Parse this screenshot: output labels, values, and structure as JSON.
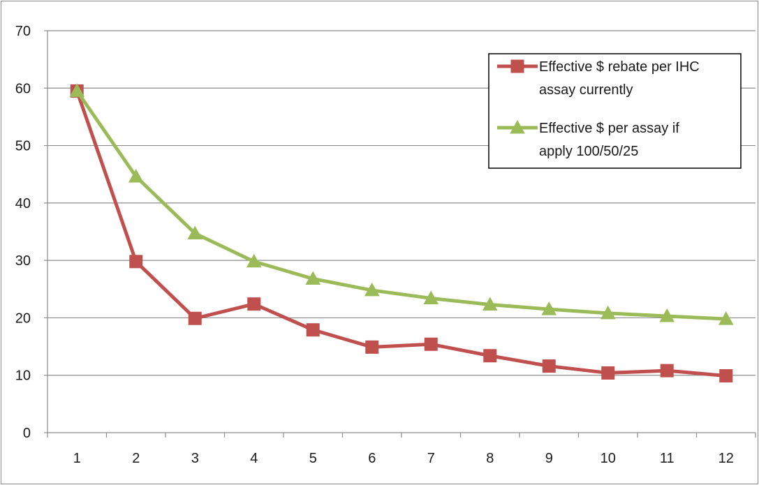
{
  "chart_data": {
    "type": "line",
    "title": "",
    "xlabel": "",
    "ylabel": "",
    "x": [
      1,
      2,
      3,
      4,
      5,
      6,
      7,
      8,
      9,
      10,
      11,
      12
    ],
    "ylim": [
      0,
      70
    ],
    "yticks": [
      0,
      10,
      20,
      30,
      40,
      50,
      60,
      70
    ],
    "grid": true,
    "legend_position": "top-right",
    "series": [
      {
        "name": "Effective $ rebate per IHC assay currently",
        "legend_lines": [
          "Effective $ rebate per IHC",
          "assay currently"
        ],
        "color": "#C0504D",
        "marker": "square",
        "values": [
          59.5,
          29.8,
          19.9,
          22.4,
          17.9,
          14.9,
          15.4,
          13.4,
          11.6,
          10.4,
          10.8,
          9.9
        ]
      },
      {
        "name": "Effective $ per assay if apply 100/50/25",
        "legend_lines": [
          "Effective $ per assay if",
          "apply 100/50/25"
        ],
        "color": "#9BBB59",
        "marker": "triangle",
        "values": [
          59.5,
          44.6,
          34.7,
          29.8,
          26.8,
          24.8,
          23.4,
          22.3,
          21.5,
          20.8,
          20.3,
          19.8
        ]
      }
    ]
  }
}
